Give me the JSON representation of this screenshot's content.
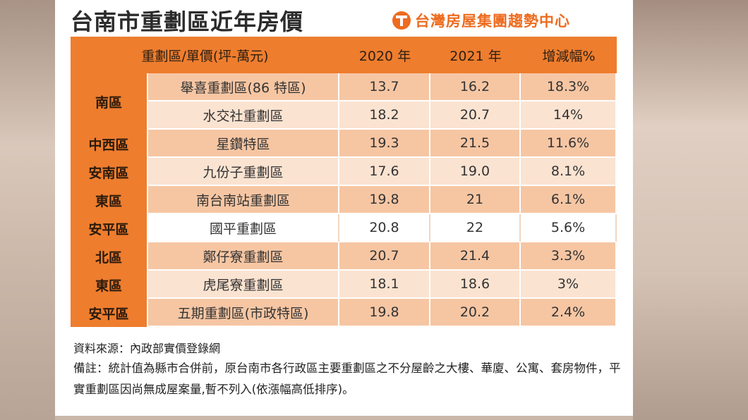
{
  "title": "台南市重劃區近年房價",
  "brand": "台灣房屋集團趨勢中心",
  "chart_data": {
    "type": "table",
    "columns": [
      "重劃區/單價(坪-萬元)",
      "2020 年",
      "2021 年",
      "增減幅%"
    ],
    "rows": [
      {
        "district": "南區",
        "zone": "舉喜重劃區(86 特區)",
        "v2020": "13.7",
        "v2021": "16.2",
        "change": "18.3%"
      },
      {
        "district": "南區",
        "zone": "水交社重劃區",
        "v2020": "18.2",
        "v2021": "20.7",
        "change": "14%"
      },
      {
        "district": "中西區",
        "zone": "星鑽特區",
        "v2020": "19.3",
        "v2021": "21.5",
        "change": "11.6%"
      },
      {
        "district": "安南區",
        "zone": "九份子重劃區",
        "v2020": "17.6",
        "v2021": "19.0",
        "change": "8.1%"
      },
      {
        "district": "東區",
        "zone": "南台南站重劃區",
        "v2020": "19.8",
        "v2021": "21",
        "change": "6.1%"
      },
      {
        "district": "安平區",
        "zone": "國平重劃區",
        "v2020": "20.8",
        "v2021": "22",
        "change": "5.6%"
      },
      {
        "district": "北區",
        "zone": "鄭仔寮重劃區",
        "v2020": "20.7",
        "v2021": "21.4",
        "change": "3.3%"
      },
      {
        "district": "東區",
        "zone": "虎尾寮重劃區",
        "v2020": "18.1",
        "v2021": "18.6",
        "change": "3%"
      },
      {
        "district": "安平區",
        "zone": "五期重劃區(市政特區)",
        "v2020": "19.8",
        "v2021": "20.2",
        "change": "2.4%"
      }
    ]
  },
  "notes": {
    "source": "資料來源：內政部實價登錄網",
    "remark": "備註：統計值為縣市合併前，原台南市各行政區主要重劃區之不分屋齡之大樓、華廈、公寓、套房物件，平實重劃區因尚無成屋案量,暫不列入(依漲幅高低排序)。"
  }
}
